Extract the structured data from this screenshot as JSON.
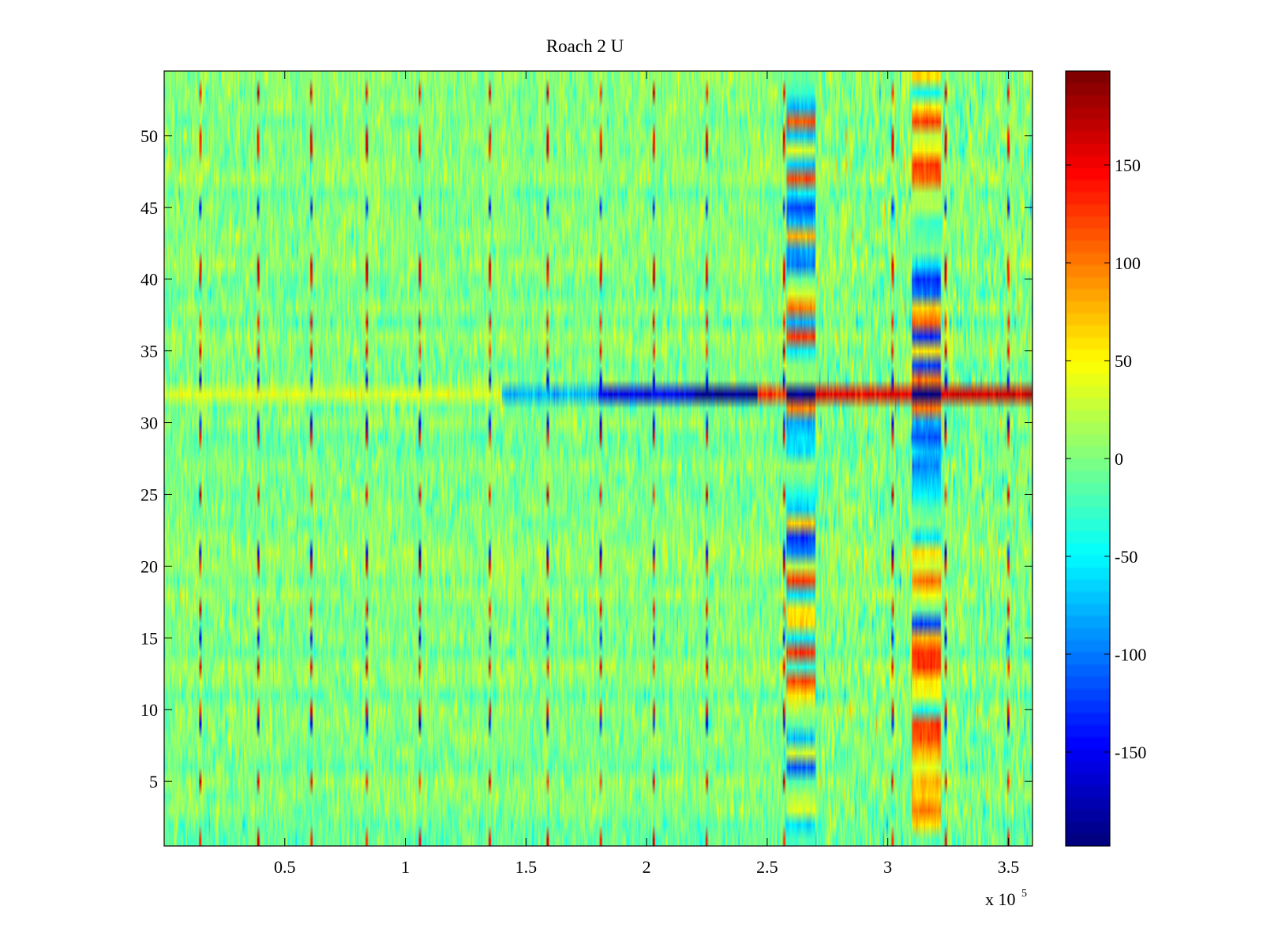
{
  "chart_data": {
    "type": "heatmap",
    "title": "Roach 2 U",
    "xlabel": "",
    "ylabel": "",
    "x_range": [
      0,
      360000
    ],
    "y_range": [
      0.5,
      54.5
    ],
    "rows": 54,
    "columns": 720,
    "x_ticks": [
      50000,
      100000,
      150000,
      200000,
      250000,
      300000,
      350000
    ],
    "x_tick_labels": [
      "0.5",
      "1",
      "1.5",
      "2",
      "2.5",
      "3",
      "3.5"
    ],
    "x_multiplier": "x 10",
    "x_multiplier_exponent": "5",
    "y_ticks": [
      5,
      10,
      15,
      20,
      25,
      30,
      35,
      40,
      45,
      50
    ],
    "y_tick_labels": [
      "5",
      "10",
      "15",
      "20",
      "25",
      "30",
      "35",
      "40",
      "45",
      "50"
    ],
    "colormap": "jet",
    "clim": [
      -198,
      198
    ],
    "colorbar": {
      "ticks": [
        -150,
        -100,
        -50,
        0,
        50,
        100,
        150
      ],
      "tick_labels": [
        "-150",
        "-100",
        "-50",
        "0",
        "50",
        "100",
        "150"
      ],
      "levels": 64
    },
    "pattern": {
      "background_mean": 0,
      "background_noise": 26,
      "row_32_segments": [
        {
          "x_start": 0,
          "x_end": 140000,
          "value": 35
        },
        {
          "x_start": 140000,
          "x_end": 180000,
          "value": -80
        },
        {
          "x_start": 180000,
          "x_end": 220000,
          "value": -150
        },
        {
          "x_start": 220000,
          "x_end": 246000,
          "value": -190
        },
        {
          "x_start": 246000,
          "x_end": 258000,
          "value": 130
        },
        {
          "x_start": 258000,
          "x_end": 270000,
          "value": -195
        },
        {
          "x_start": 270000,
          "x_end": 310000,
          "value": 150
        },
        {
          "x_start": 310000,
          "x_end": 322000,
          "value": -195
        },
        {
          "x_start": 322000,
          "x_end": 360000,
          "value": 160
        }
      ],
      "active_bands": [
        {
          "x_start": 258000,
          "x_end": 270000
        },
        {
          "x_start": 310000,
          "x_end": 322000
        }
      ],
      "vertical_spikes_x": [
        15000,
        39000,
        61000,
        84000,
        106000,
        135000,
        159000,
        181000,
        203000,
        225000,
        257000,
        302000,
        324000,
        350000
      ]
    }
  }
}
